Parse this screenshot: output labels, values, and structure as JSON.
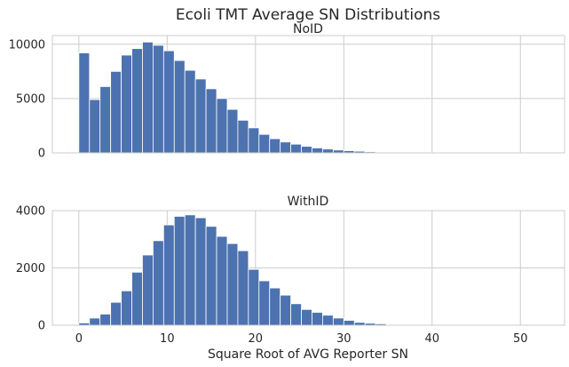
{
  "chart_data": {
    "type": "bar",
    "title": "Ecoli TMT Average SN Distributions",
    "xlabel": "Square Root of AVG Reporter SN",
    "xlim": [
      -3,
      55
    ],
    "xticks": [
      0,
      10,
      20,
      30,
      40,
      50
    ],
    "bin_edges_start": 0,
    "bin_width": 1.2,
    "color": "#4c72b0",
    "grid": true,
    "panels": [
      {
        "title": "NoID",
        "ylim": [
          0,
          10800
        ],
        "yticks": [
          0,
          5000,
          10000
        ],
        "values": [
          9200,
          4900,
          6100,
          7500,
          9000,
          9600,
          10200,
          9900,
          9400,
          8500,
          7600,
          6800,
          5900,
          5000,
          4000,
          3000,
          2300,
          1700,
          1300,
          1000,
          800,
          600,
          450,
          350,
          260,
          200,
          150,
          100,
          70,
          50,
          0,
          0,
          0,
          0,
          0,
          0,
          0,
          0,
          0,
          0,
          0,
          0,
          0
        ]
      },
      {
        "title": "WithID",
        "ylim": [
          0,
          4000
        ],
        "yticks": [
          0,
          2000,
          4000
        ],
        "values": [
          80,
          250,
          390,
          800,
          1200,
          1850,
          2450,
          2950,
          3500,
          3800,
          3850,
          3750,
          3450,
          3100,
          2850,
          2600,
          1950,
          1550,
          1300,
          1050,
          750,
          550,
          450,
          350,
          250,
          170,
          100,
          70,
          50,
          20,
          0,
          0,
          0,
          0,
          0,
          0,
          0,
          0,
          0,
          0,
          0,
          0,
          0
        ]
      }
    ]
  }
}
